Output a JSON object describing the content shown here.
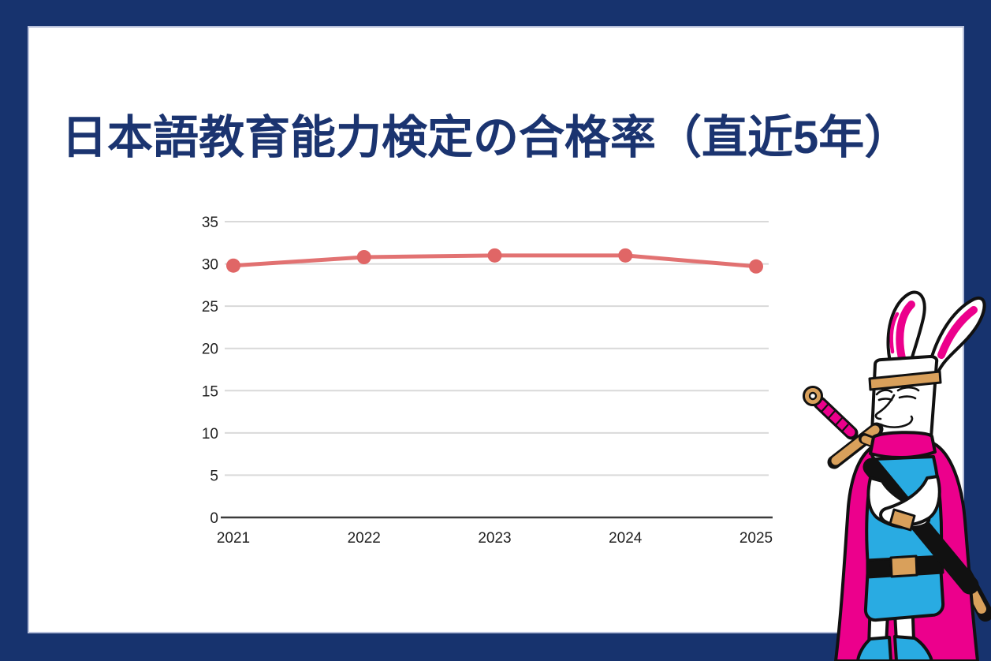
{
  "title": "日本語教育能力検定の合格率（直近5年）",
  "colors": {
    "background_navy": "#17336e",
    "card_white": "#ffffff",
    "card_edge": "#b6bfda",
    "title_navy": "#1b3470",
    "line_red": "#e06666",
    "grid_gray": "#d9d9d9",
    "axis_gray": "#3c3c3c",
    "tick_text": "#212121",
    "mascot_pink": "#ec008c",
    "mascot_blue": "#29abe2",
    "mascot_gold": "#d9a05b",
    "mascot_outline": "#111111"
  },
  "chart_data": {
    "type": "line",
    "x": [
      "2021",
      "2022",
      "2023",
      "2024",
      "2025"
    ],
    "values": [
      29.8,
      30.8,
      31.0,
      31.0,
      29.7
    ],
    "title": "日本語教育能力検定の合格率（直近5年）",
    "xlabel": "",
    "ylabel": "",
    "ylim": [
      0,
      35
    ],
    "yticks": [
      0,
      5,
      10,
      15,
      20,
      25,
      30,
      35
    ],
    "grid": true,
    "legend": "none",
    "line_color": "#e06666",
    "marker": "circle"
  },
  "mascot": {
    "description": "rabbit-eared warrior mascot with sword, pink cape and blue tunic"
  }
}
